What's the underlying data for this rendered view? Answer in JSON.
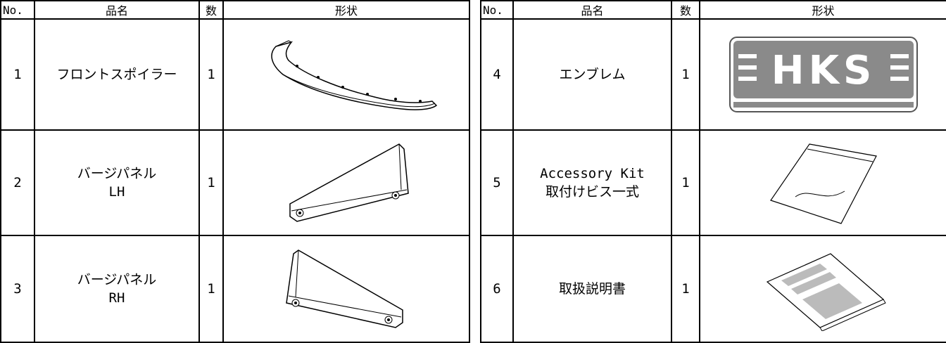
{
  "tables": [
    {
      "header": [
        "No.",
        "品名",
        "数",
        "形状"
      ],
      "rows": [
        {
          "no": 1,
          "name": [
            "フロントスポイラー"
          ],
          "qty": 1
        },
        {
          "no": 2,
          "name": [
            "バージパネル",
            "LH"
          ],
          "qty": 1
        },
        {
          "no": 3,
          "name": [
            "バージパネル",
            "RH"
          ],
          "qty": 1
        }
      ]
    },
    {
      "header": [
        "No.",
        "品名",
        "数",
        "形状"
      ],
      "rows": [
        {
          "no": 4,
          "name": [
            "エンブレム"
          ],
          "qty": 1,
          "logo": "HKS"
        },
        {
          "no": 5,
          "name": [
            "Accessory Kit",
            "取付けビス一式"
          ],
          "qty": 1
        },
        {
          "no": 6,
          "name": [
            "取扱説明書"
          ],
          "qty": 1
        }
      ]
    }
  ]
}
